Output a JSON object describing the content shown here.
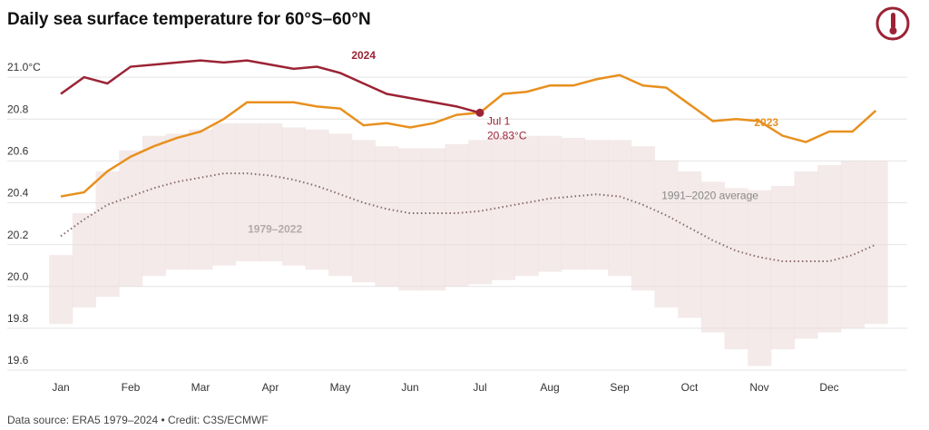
{
  "chart_data": {
    "type": "line",
    "title": "Daily sea surface temperature for 60°S–60°N",
    "source": "Data source: ERA5 1979–2024 • Credit: C3S/ECMWF",
    "categories": [
      "Jan",
      null,
      null,
      "Feb",
      null,
      null,
      "Mar",
      null,
      null,
      "Apr",
      null,
      null,
      "May",
      null,
      null,
      "Jun",
      null,
      null,
      "Jul",
      null,
      null,
      "Aug",
      null,
      null,
      "Sep",
      null,
      null,
      "Oct",
      null,
      null,
      "Nov",
      null,
      null,
      "Dec",
      null,
      null
    ],
    "ylim": [
      19.6,
      21.1
    ],
    "yticks": [
      19.6,
      19.8,
      {
        "value": 20,
        "label": "20.0"
      },
      20.2,
      20.4,
      20.6,
      20.8,
      {
        "value": 21,
        "label": "21.0°C"
      }
    ],
    "grid": true,
    "band": {
      "name": "1979–2022",
      "color": "#eddcdc",
      "high": [
        20.15,
        20.35,
        20.55,
        20.65,
        20.72,
        20.73,
        20.75,
        20.78,
        20.78,
        20.78,
        20.76,
        20.75,
        20.73,
        20.7,
        20.67,
        20.66,
        20.66,
        20.68,
        20.7,
        20.72,
        20.72,
        20.72,
        20.71,
        20.7,
        20.7,
        20.67,
        20.6,
        20.55,
        20.5,
        20.47,
        20.46,
        20.48,
        20.55,
        20.58,
        20.6,
        20.6
      ],
      "low": [
        19.82,
        19.9,
        19.95,
        20.0,
        20.05,
        20.08,
        20.08,
        20.1,
        20.12,
        20.12,
        20.1,
        20.08,
        20.05,
        20.02,
        20.0,
        19.98,
        19.98,
        20.0,
        20.01,
        20.03,
        20.05,
        20.07,
        20.08,
        20.08,
        20.05,
        19.98,
        19.9,
        19.85,
        19.78,
        19.7,
        19.62,
        19.7,
        19.75,
        19.78,
        19.8,
        19.82
      ]
    },
    "series": [
      {
        "name": "1991–2020 average",
        "color": "#8a6a6a",
        "style": "dotted",
        "values": [
          20.24,
          20.32,
          20.39,
          20.43,
          20.47,
          20.5,
          20.52,
          20.54,
          20.54,
          20.53,
          20.51,
          20.48,
          20.44,
          20.4,
          20.37,
          20.35,
          20.35,
          20.35,
          20.36,
          20.38,
          20.4,
          20.42,
          20.43,
          20.44,
          20.43,
          20.39,
          20.34,
          20.28,
          20.22,
          20.17,
          20.14,
          20.12,
          20.12,
          20.12,
          20.15,
          20.2
        ]
      },
      {
        "name": "2023",
        "color": "#e8901e",
        "style": "solid",
        "values": [
          20.43,
          20.45,
          20.55,
          20.62,
          20.67,
          20.71,
          20.74,
          20.8,
          20.88,
          20.88,
          20.88,
          20.86,
          20.85,
          20.77,
          20.78,
          20.76,
          20.78,
          20.82,
          20.83,
          20.92,
          20.93,
          20.96,
          20.96,
          20.99,
          21.01,
          20.96,
          20.95,
          20.87,
          20.79,
          20.8,
          20.79,
          20.72,
          20.69,
          20.74,
          20.74,
          20.84
        ]
      },
      {
        "name": "2024",
        "color": "#9b2335",
        "style": "solid",
        "values": [
          20.92,
          21.0,
          20.97,
          21.05,
          21.06,
          21.07,
          21.08,
          21.07,
          21.08,
          21.06,
          21.04,
          21.05,
          21.02,
          20.97,
          20.92,
          20.9,
          20.88,
          20.86,
          20.83,
          null,
          null,
          null,
          null,
          null,
          null,
          null,
          null,
          null,
          null,
          null,
          null,
          null,
          null,
          null,
          null,
          null
        ],
        "value_labels": [
          null,
          null,
          null,
          null,
          null,
          null,
          null,
          null,
          null,
          null,
          null,
          null,
          null,
          null,
          null,
          null,
          null,
          null,
          "20.83°C",
          null,
          null,
          null,
          null,
          null,
          null,
          null,
          null,
          null,
          null,
          null,
          null,
          null,
          null,
          null,
          null,
          null
        ],
        "annotation": "Jul 1"
      }
    ]
  }
}
